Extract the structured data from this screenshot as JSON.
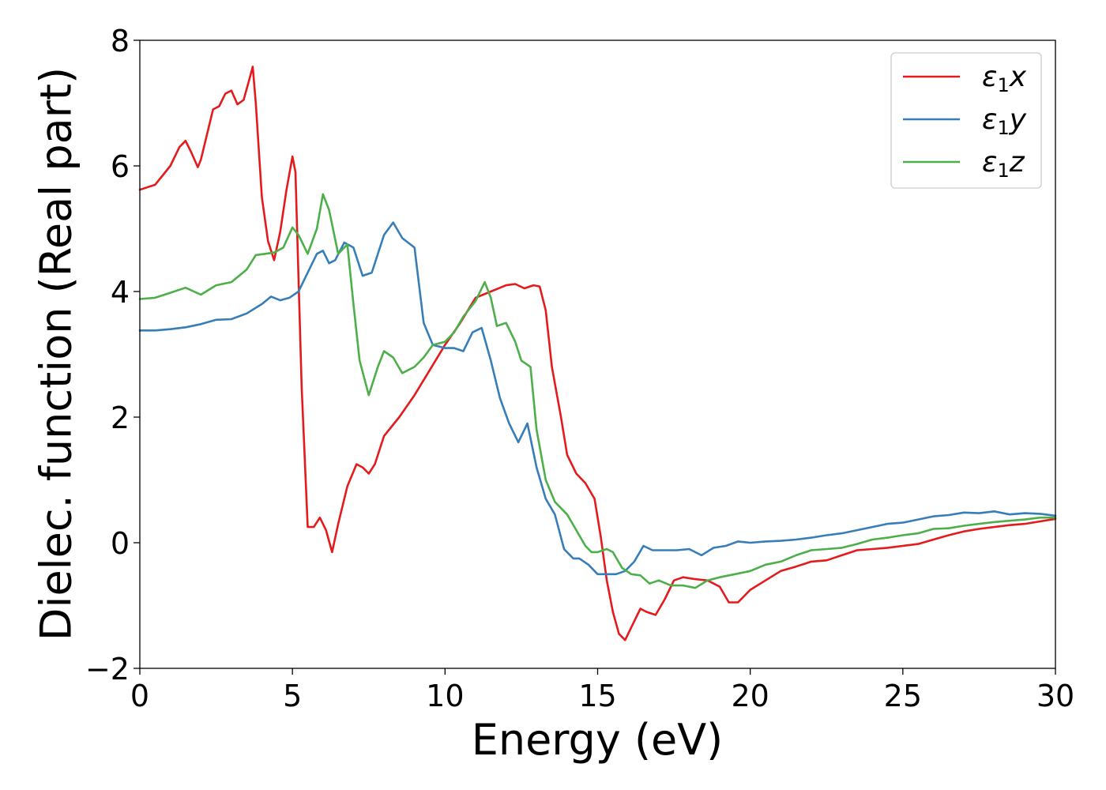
{
  "chart_data": {
    "type": "line",
    "xlabel": "Energy (eV)",
    "ylabel": "Dielec. function (Real part)",
    "xlim": [
      0,
      30
    ],
    "ylim": [
      -2,
      8
    ],
    "xticks": [
      "0",
      "5",
      "10",
      "15",
      "20",
      "25",
      "30"
    ],
    "yticks": [
      "−2",
      "0",
      "2",
      "4",
      "6",
      "8"
    ],
    "grid": false,
    "legend_position": "top-right",
    "series": [
      {
        "name": "ε1x",
        "legend_base": "ε",
        "legend_sub": "1",
        "legend_tail": "x",
        "color": "#e41a1c",
        "x": [
          0,
          0.5,
          1.0,
          1.3,
          1.5,
          1.7,
          1.9,
          2.0,
          2.2,
          2.4,
          2.6,
          2.8,
          3.0,
          3.2,
          3.4,
          3.6,
          3.7,
          3.8,
          4.0,
          4.2,
          4.4,
          4.6,
          4.8,
          5.0,
          5.1,
          5.3,
          5.5,
          5.7,
          5.9,
          6.1,
          6.3,
          6.5,
          6.8,
          7.1,
          7.3,
          7.5,
          7.7,
          8.0,
          8.5,
          9.0,
          9.5,
          10.0,
          10.5,
          11.0,
          11.5,
          12.0,
          12.3,
          12.6,
          12.9,
          13.1,
          13.3,
          13.5,
          13.8,
          14.0,
          14.3,
          14.6,
          14.9,
          15.1,
          15.3,
          15.5,
          15.7,
          15.9,
          16.1,
          16.4,
          16.6,
          16.9,
          17.2,
          17.5,
          17.8,
          18.2,
          18.6,
          19.0,
          19.3,
          19.6,
          20.0,
          20.5,
          21.0,
          21.5,
          22.0,
          22.5,
          23.0,
          23.5,
          24.0,
          24.5,
          25.0,
          25.5,
          26.0,
          26.5,
          27.0,
          27.5,
          28.0,
          28.5,
          29.0,
          29.5,
          30.0
        ],
        "y": [
          5.62,
          5.7,
          6.0,
          6.3,
          6.4,
          6.2,
          5.98,
          6.1,
          6.5,
          6.9,
          6.95,
          7.15,
          7.2,
          6.98,
          7.05,
          7.4,
          7.58,
          7.0,
          5.5,
          4.8,
          4.5,
          4.95,
          5.6,
          6.15,
          5.9,
          2.5,
          0.25,
          0.25,
          0.4,
          0.2,
          -0.15,
          0.3,
          0.9,
          1.25,
          1.2,
          1.1,
          1.25,
          1.7,
          2.0,
          2.35,
          2.75,
          3.15,
          3.5,
          3.9,
          4.0,
          4.1,
          4.12,
          4.05,
          4.1,
          4.08,
          3.7,
          2.8,
          2.0,
          1.4,
          1.1,
          0.95,
          0.7,
          0.1,
          -0.6,
          -1.1,
          -1.45,
          -1.55,
          -1.35,
          -1.05,
          -1.1,
          -1.15,
          -0.9,
          -0.6,
          -0.55,
          -0.58,
          -0.6,
          -0.7,
          -0.95,
          -0.95,
          -0.75,
          -0.6,
          -0.45,
          -0.38,
          -0.3,
          -0.28,
          -0.2,
          -0.12,
          -0.1,
          -0.08,
          -0.05,
          -0.02,
          0.05,
          0.12,
          0.18,
          0.22,
          0.25,
          0.28,
          0.3,
          0.34,
          0.38
        ]
      },
      {
        "name": "ε1y",
        "legend_base": "ε",
        "legend_sub": "1",
        "legend_tail": "y",
        "color": "#377eb8",
        "x": [
          0,
          0.5,
          1.0,
          1.5,
          2.0,
          2.5,
          3.0,
          3.5,
          4.0,
          4.3,
          4.6,
          4.9,
          5.2,
          5.5,
          5.8,
          6.0,
          6.2,
          6.4,
          6.7,
          7.0,
          7.3,
          7.6,
          8.0,
          8.3,
          8.6,
          9.0,
          9.3,
          9.6,
          10.0,
          10.3,
          10.6,
          10.9,
          11.2,
          11.5,
          11.8,
          12.1,
          12.4,
          12.7,
          13.0,
          13.3,
          13.6,
          13.9,
          14.2,
          14.4,
          14.7,
          15.0,
          15.3,
          15.6,
          15.9,
          16.2,
          16.5,
          16.8,
          17.2,
          17.6,
          18.0,
          18.4,
          18.8,
          19.2,
          19.6,
          20.0,
          20.5,
          21.0,
          21.5,
          22.0,
          22.5,
          23.0,
          23.5,
          24.0,
          24.5,
          25.0,
          25.5,
          26.0,
          26.5,
          27.0,
          27.5,
          28.0,
          28.5,
          29.0,
          29.5,
          30.0
        ],
        "y": [
          3.38,
          3.38,
          3.4,
          3.43,
          3.48,
          3.55,
          3.56,
          3.65,
          3.8,
          3.92,
          3.86,
          3.9,
          4.0,
          4.3,
          4.6,
          4.65,
          4.45,
          4.5,
          4.78,
          4.7,
          4.25,
          4.3,
          4.9,
          5.1,
          4.85,
          4.7,
          3.5,
          3.15,
          3.1,
          3.1,
          3.05,
          3.35,
          3.42,
          2.9,
          2.3,
          1.9,
          1.6,
          1.9,
          1.2,
          0.7,
          0.45,
          -0.1,
          -0.25,
          -0.25,
          -0.35,
          -0.5,
          -0.5,
          -0.5,
          -0.45,
          -0.3,
          -0.05,
          -0.12,
          -0.12,
          -0.12,
          -0.1,
          -0.2,
          -0.08,
          -0.05,
          0.02,
          0.0,
          0.02,
          0.03,
          0.05,
          0.08,
          0.12,
          0.15,
          0.2,
          0.25,
          0.3,
          0.32,
          0.37,
          0.42,
          0.44,
          0.48,
          0.47,
          0.5,
          0.45,
          0.47,
          0.46,
          0.43
        ]
      },
      {
        "name": "ε1z",
        "legend_base": "ε",
        "legend_sub": "1",
        "legend_tail": "z",
        "color": "#4daf4a",
        "x": [
          0,
          0.5,
          1.0,
          1.5,
          2.0,
          2.5,
          3.0,
          3.5,
          3.8,
          4.1,
          4.4,
          4.7,
          5.0,
          5.2,
          5.5,
          5.8,
          6.0,
          6.2,
          6.5,
          6.8,
          7.0,
          7.2,
          7.5,
          7.8,
          8.0,
          8.3,
          8.6,
          9.0,
          9.3,
          9.6,
          10.0,
          10.3,
          10.6,
          11.0,
          11.3,
          11.5,
          11.7,
          12.0,
          12.3,
          12.5,
          12.8,
          13.0,
          13.3,
          13.6,
          14.0,
          14.3,
          14.6,
          14.8,
          15.0,
          15.3,
          15.5,
          15.8,
          16.1,
          16.4,
          16.7,
          17.0,
          17.4,
          17.8,
          18.2,
          18.6,
          19.0,
          19.5,
          20.0,
          20.5,
          21.0,
          21.5,
          22.0,
          22.5,
          23.0,
          23.5,
          24.0,
          24.5,
          25.0,
          25.5,
          26.0,
          26.5,
          27.0,
          27.5,
          28.0,
          28.5,
          29.0,
          29.5,
          30.0
        ],
        "y": [
          3.88,
          3.9,
          3.98,
          4.06,
          3.95,
          4.1,
          4.15,
          4.35,
          4.58,
          4.6,
          4.62,
          4.7,
          5.02,
          4.9,
          4.6,
          5.0,
          5.55,
          5.3,
          4.6,
          4.75,
          3.8,
          2.9,
          2.35,
          2.8,
          3.05,
          2.95,
          2.7,
          2.8,
          2.95,
          3.15,
          3.2,
          3.35,
          3.6,
          3.85,
          4.15,
          3.9,
          3.45,
          3.5,
          3.2,
          2.9,
          2.8,
          1.8,
          1.0,
          0.65,
          0.45,
          0.2,
          -0.05,
          -0.15,
          -0.15,
          -0.1,
          -0.15,
          -0.4,
          -0.5,
          -0.52,
          -0.65,
          -0.6,
          -0.68,
          -0.68,
          -0.72,
          -0.6,
          -0.55,
          -0.5,
          -0.45,
          -0.35,
          -0.3,
          -0.2,
          -0.12,
          -0.1,
          -0.08,
          -0.02,
          0.05,
          0.08,
          0.12,
          0.15,
          0.22,
          0.23,
          0.27,
          0.3,
          0.33,
          0.35,
          0.37,
          0.4,
          0.4
        ]
      }
    ]
  }
}
